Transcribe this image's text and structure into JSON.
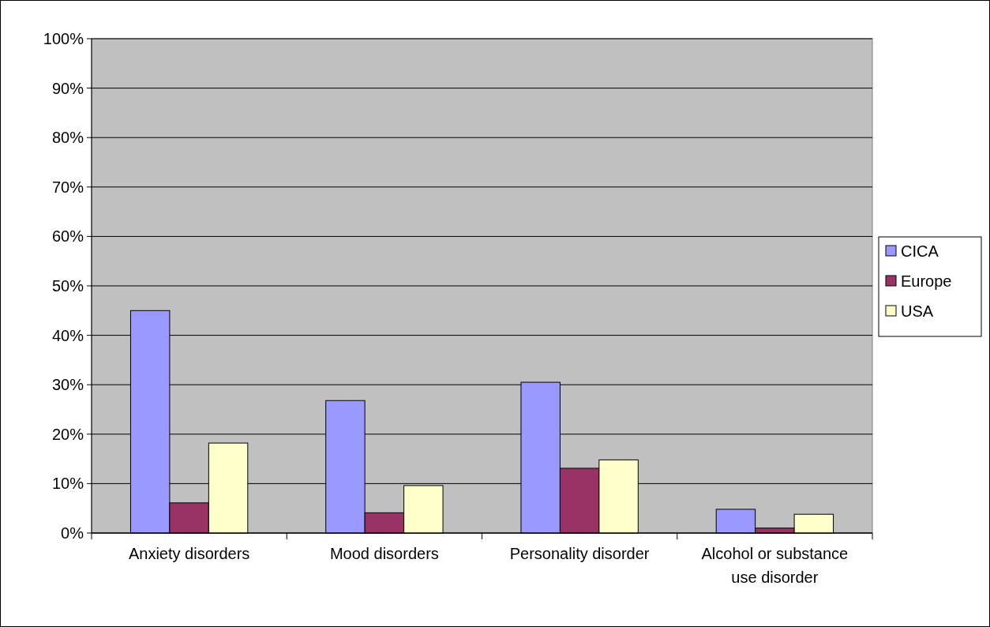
{
  "chart_data": {
    "type": "bar",
    "categories": [
      "Anxiety disorders",
      "Mood disorders",
      "Personality disorder",
      "Alcohol or substance use disorder"
    ],
    "series": [
      {
        "name": "CICA",
        "color": "#9999ff",
        "values": [
          45.0,
          26.8,
          30.5,
          4.8
        ]
      },
      {
        "name": "Europe",
        "color": "#993366",
        "values": [
          6.1,
          4.1,
          13.1,
          1.0
        ]
      },
      {
        "name": "USA",
        "color": "#ffffcc",
        "values": [
          18.2,
          9.6,
          14.8,
          3.8
        ]
      }
    ],
    "ylim": [
      0,
      100
    ],
    "yticks": [
      {
        "value": 0,
        "label": "0%"
      },
      {
        "value": 10,
        "label": "10%"
      },
      {
        "value": 20,
        "label": "20%"
      },
      {
        "value": 30,
        "label": "30%"
      },
      {
        "value": 40,
        "label": "40%"
      },
      {
        "value": 50,
        "label": "50%"
      },
      {
        "value": 60,
        "label": "60%"
      },
      {
        "value": 70,
        "label": "70%"
      },
      {
        "value": 80,
        "label": "80%"
      },
      {
        "value": 90,
        "label": "90%"
      },
      {
        "value": 100,
        "label": "100%"
      }
    ],
    "grid": "y",
    "legend": "right"
  }
}
